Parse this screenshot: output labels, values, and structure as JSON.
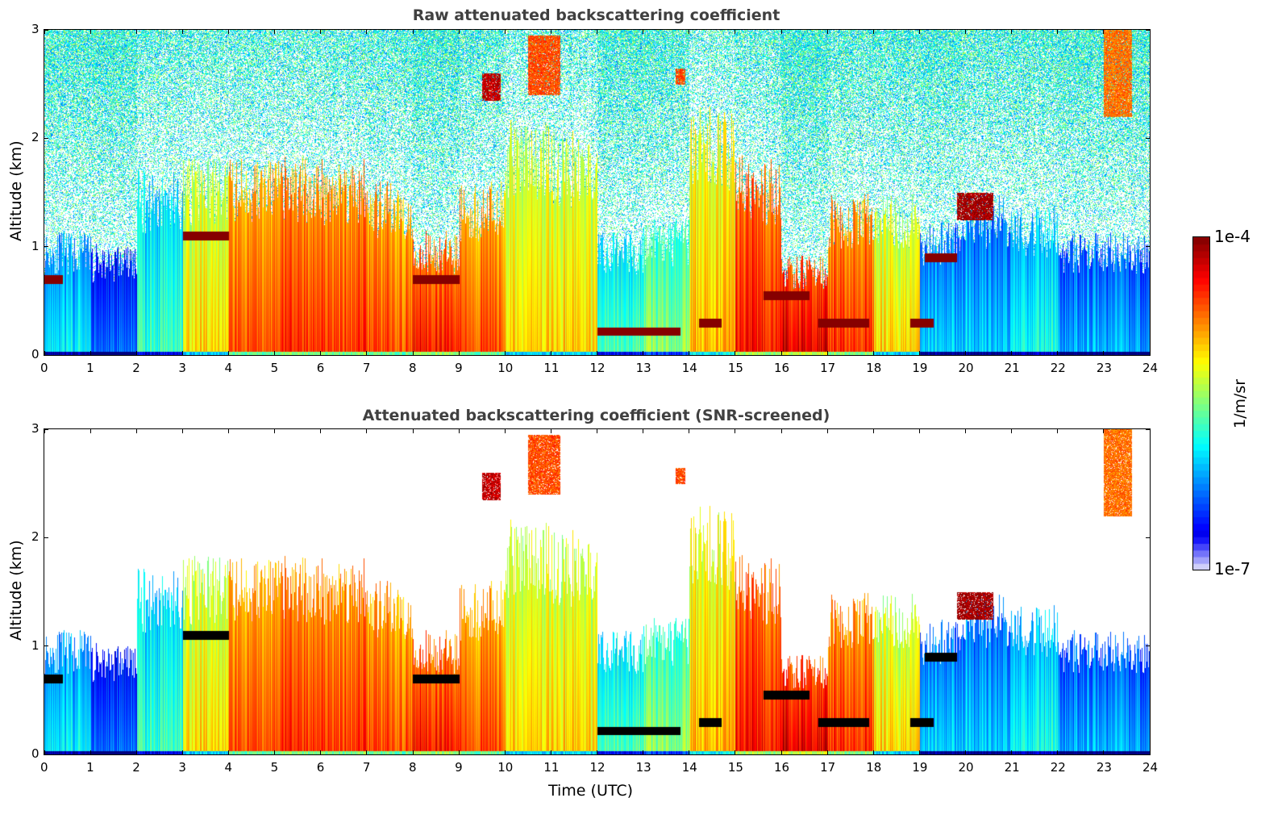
{
  "chart_data": [
    {
      "type": "heatmap",
      "title": "Raw attenuated backscattering coefficient",
      "xlabel": "",
      "ylabel": "Altitude (km)",
      "xlim": [
        0,
        24
      ],
      "ylim": [
        0,
        3
      ],
      "xticks": [
        "0",
        "1",
        "2",
        "3",
        "4",
        "5",
        "6",
        "7",
        "8",
        "9",
        "10",
        "11",
        "12",
        "13",
        "14",
        "15",
        "16",
        "17",
        "18",
        "19",
        "20",
        "21",
        "22",
        "23",
        "24"
      ],
      "yticks": [
        "0",
        "1",
        "2",
        "3"
      ],
      "screened": false
    },
    {
      "type": "heatmap",
      "title": "Attenuated backscattering coefficient (SNR-screened)",
      "xlabel": "Time (UTC)",
      "ylabel": "Altitude (km)",
      "xlim": [
        0,
        24
      ],
      "ylim": [
        0,
        3
      ],
      "xticks": [
        "0",
        "1",
        "2",
        "3",
        "4",
        "5",
        "6",
        "7",
        "8",
        "9",
        "10",
        "11",
        "12",
        "13",
        "14",
        "15",
        "16",
        "17",
        "18",
        "19",
        "20",
        "21",
        "22",
        "23",
        "24"
      ],
      "yticks": [
        "0",
        "1",
        "2",
        "3"
      ],
      "screened": true
    }
  ],
  "colorbar": {
    "label": "1/m/sr",
    "min_label": "1e-7",
    "max_label": "1e-4",
    "log10_range": [
      -7,
      -4
    ],
    "colormap": "jet"
  },
  "profile_hourly": {
    "hour": [
      0,
      1,
      2,
      3,
      4,
      5,
      6,
      7,
      8,
      9,
      10,
      11,
      12,
      13,
      14,
      15,
      16,
      17,
      18,
      19,
      20,
      21,
      22,
      23
    ],
    "layer_top_km": [
      1.0,
      0.9,
      1.5,
      1.6,
      1.6,
      1.6,
      1.6,
      1.4,
      1.0,
      1.4,
      1.9,
      1.8,
      1.0,
      1.1,
      2.0,
      1.6,
      0.8,
      1.3,
      1.3,
      1.1,
      1.3,
      1.2,
      1.0,
      1.0
    ],
    "log10_backscatter": [
      -5.9,
      -6.3,
      -5.7,
      -5.0,
      -4.6,
      -4.5,
      -4.5,
      -4.6,
      -4.4,
      -4.6,
      -5.0,
      -5.0,
      -5.6,
      -5.4,
      -4.9,
      -4.4,
      -4.3,
      -4.5,
      -5.0,
      -6.0,
      -6.0,
      -5.8,
      -6.1,
      -6.1
    ]
  },
  "elevated_layers": [
    {
      "t0": 23.0,
      "t1": 23.6,
      "z0": 2.2,
      "z1": 3.0,
      "log10_backscatter": -4.7
    },
    {
      "t0": 9.5,
      "t1": 9.9,
      "z0": 2.35,
      "z1": 2.6,
      "log10_backscatter": -4.2
    },
    {
      "t0": 10.5,
      "t1": 11.2,
      "z0": 2.4,
      "z1": 2.95,
      "log10_backscatter": -4.6
    },
    {
      "t0": 19.8,
      "t1": 20.6,
      "z0": 1.25,
      "z1": 1.5,
      "log10_backscatter": -4.1
    },
    {
      "t0": 13.7,
      "t1": 13.9,
      "z0": 2.5,
      "z1": 2.65,
      "log10_backscatter": -4.6
    }
  ],
  "cloud_bases": [
    {
      "t0": 0.0,
      "t1": 0.4,
      "z": 0.7
    },
    {
      "t0": 3.0,
      "t1": 4.0,
      "z": 1.1
    },
    {
      "t0": 8.0,
      "t1": 9.0,
      "z": 0.7
    },
    {
      "t0": 12.0,
      "t1": 13.8,
      "z": 0.22
    },
    {
      "t0": 14.2,
      "t1": 14.7,
      "z": 0.3
    },
    {
      "t0": 15.6,
      "t1": 16.6,
      "z": 0.55
    },
    {
      "t0": 16.8,
      "t1": 17.9,
      "z": 0.3
    },
    {
      "t0": 18.8,
      "t1": 19.3,
      "z": 0.3
    },
    {
      "t0": 19.1,
      "t1": 19.8,
      "z": 0.9
    }
  ]
}
